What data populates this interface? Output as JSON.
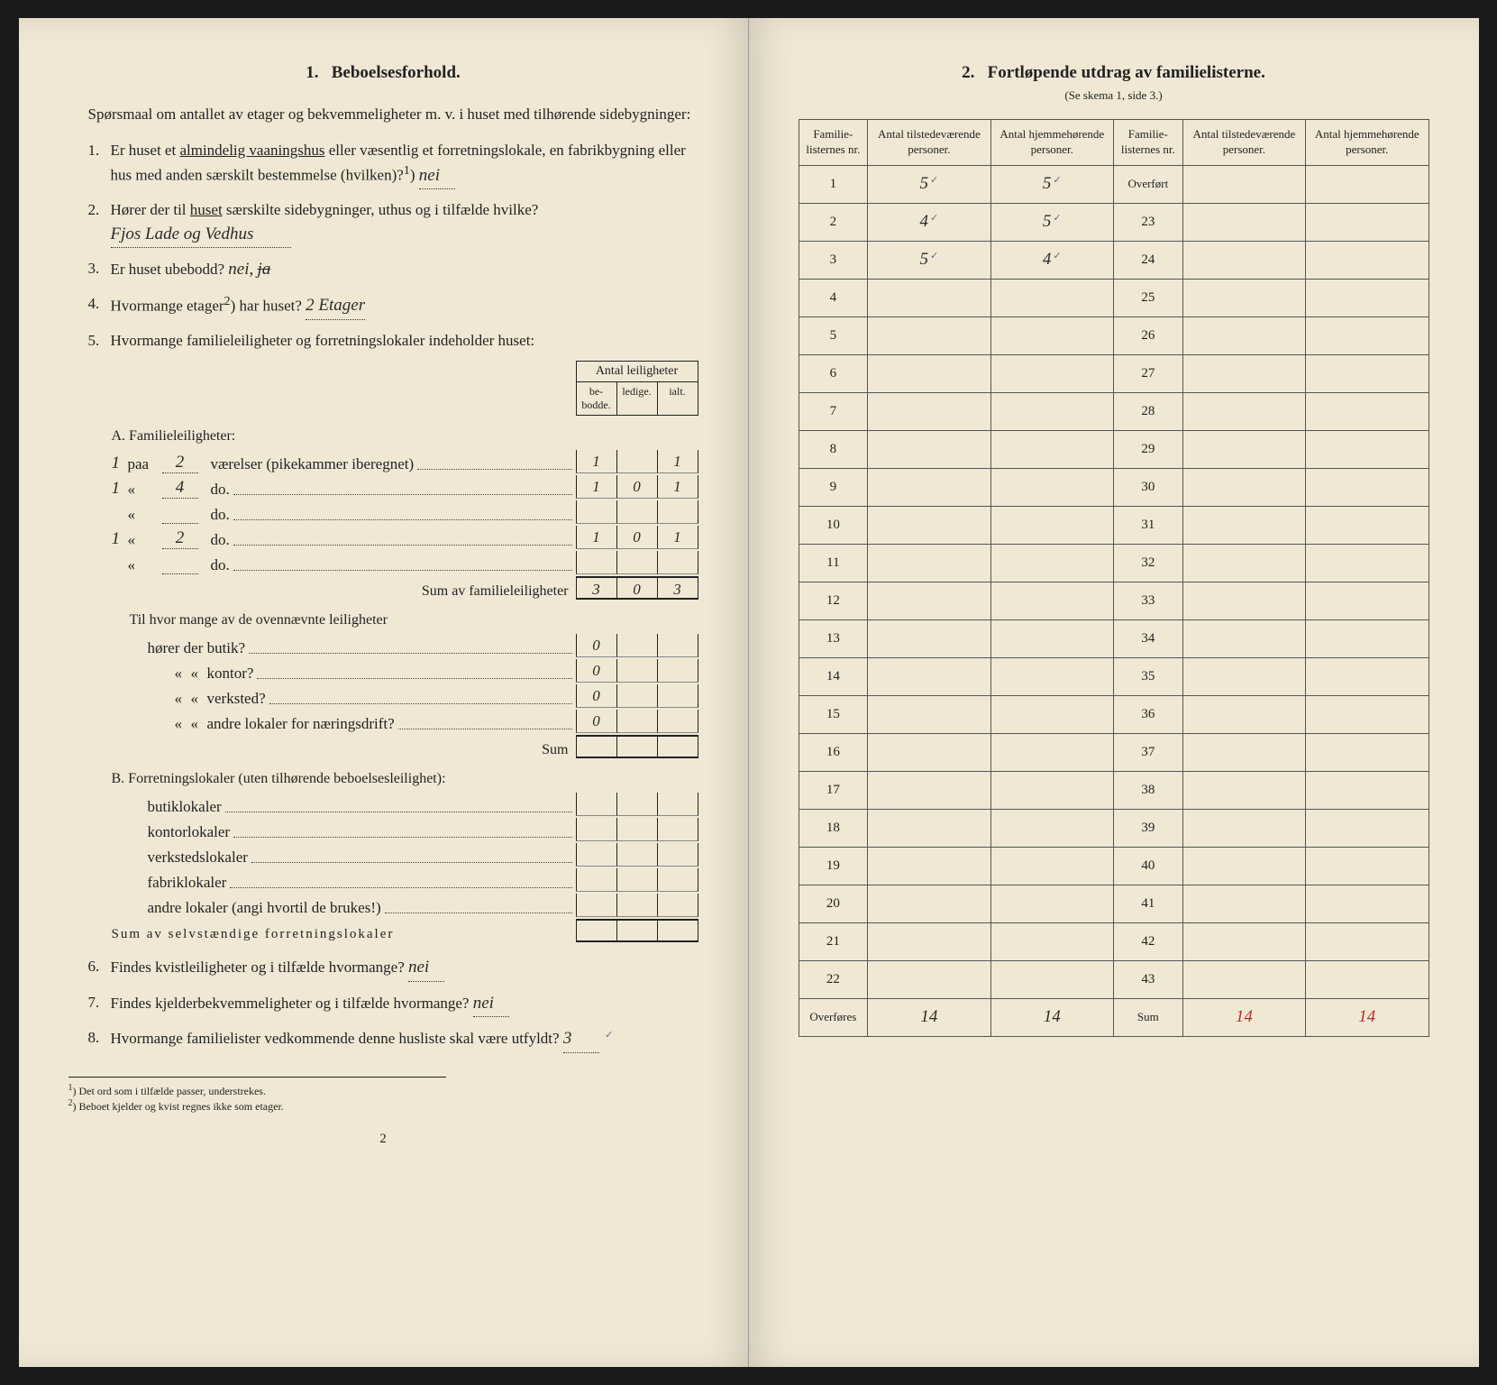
{
  "left": {
    "section_number": "1.",
    "section_title": "Beboelsesforhold.",
    "intro": "Spørsmaal om antallet av etager og bekvemmeligheter m. v. i huset med tilhørende sidebygninger:",
    "q1": {
      "num": "1.",
      "text_a": "Er huset et ",
      "underlined": "almindelig vaaningshus",
      "text_b": " eller væsentlig et forretningslokale, en fabrikbygning eller hus med anden særskilt bestemmelse (hvilken)?",
      "sup": "1",
      "closing": ")",
      "answer": "nei"
    },
    "q2": {
      "num": "2.",
      "text_a": "Hører der til ",
      "underlined": "huset",
      "text_b": " særskilte sidebygninger, uthus og i tilfælde hvilke?",
      "answer": "Fjos Lade og Vedhus"
    },
    "q3": {
      "num": "3.",
      "text": "Er huset ubebodd?",
      "answer": "nei,",
      "struck": "ja"
    },
    "q4": {
      "num": "4.",
      "text_a": "Hvormange etager",
      "sup": "2",
      "text_b": ") har huset?",
      "answer": "2 Etager"
    },
    "q5": {
      "num": "5.",
      "text": "Hvormange familieleiligheter og forretningslokaler indeholder huset:"
    },
    "antal_header": "Antal leiligheter",
    "antal_sub": {
      "c1": "be-bodde.",
      "c2": "ledige.",
      "c3": "ialt."
    },
    "sectionA": {
      "label": "A. Familieleiligheter:",
      "rows": [
        {
          "pre": "1",
          "paa": "paa",
          "n": "2",
          "mid": "værelser (pikekammer iberegnet)",
          "c1": "1",
          "c2": "",
          "c3": "1"
        },
        {
          "pre": "1",
          "quote": "«",
          "n": "4",
          "mid": "do.",
          "c1": "1",
          "c2": "0",
          "c3": "1"
        },
        {
          "pre": "",
          "quote": "«",
          "n": "",
          "mid": "do.",
          "c1": "",
          "c2": "",
          "c3": ""
        },
        {
          "pre": "1",
          "quote": "«",
          "n": "2",
          "mid": "do.",
          "c1": "1",
          "c2": "0",
          "c3": "1"
        },
        {
          "pre": "",
          "quote": "«",
          "n": "",
          "mid": "do.",
          "c1": "",
          "c2": "",
          "c3": ""
        }
      ],
      "sum_label": "Sum av familieleiligheter",
      "sum": {
        "c1": "3",
        "c2": "0",
        "c3": "3"
      },
      "til_label": "Til hvor mange av de ovennævnte leiligheter",
      "sub_rows": [
        {
          "label": "hører der butik?",
          "val": "0"
        },
        {
          "label": "kontor?",
          "val": "0"
        },
        {
          "label": "verksted?",
          "val": "0"
        },
        {
          "label": "andre lokaler for næringsdrift?",
          "val": "0"
        }
      ],
      "sub_sum_label": "Sum"
    },
    "sectionB": {
      "label": "B. Forretningslokaler (uten tilhørende beboelsesleilighet):",
      "rows": [
        "butiklokaler",
        "kontorlokaler",
        "verkstedslokaler",
        "fabriklokaler",
        "andre lokaler (angi hvortil de brukes!)"
      ],
      "sum_label": "Sum av selvstændige forretningslokaler"
    },
    "q6": {
      "num": "6.",
      "text": "Findes kvistleiligheter og i tilfælde hvormange?",
      "answer": "nei"
    },
    "q7": {
      "num": "7.",
      "text": "Findes kjelderbekvemmeligheter og i tilfælde hvormange?",
      "answer": "nei"
    },
    "q8": {
      "num": "8.",
      "text": "Hvormange familielister vedkommende denne husliste skal være utfyldt?",
      "answer": "3",
      "check": "✓"
    },
    "footnotes": {
      "f1": "Det ord som i tilfælde passer, understrekes.",
      "f2": "Beboet kjelder og kvist regnes ikke som etager."
    },
    "page_num": "2"
  },
  "right": {
    "section_number": "2.",
    "section_title": "Fortløpende utdrag av familielisterne.",
    "subtitle": "(Se skema 1, side 3.)",
    "headers": {
      "nr": "Familie-listernes nr.",
      "tilstede": "Antal tilstedeværende personer.",
      "hjemme": "Antal hjemmehørende personer."
    },
    "overfort_label": "Overført",
    "rows_left": [
      {
        "nr": "1",
        "t": "5",
        "h": "5",
        "tc": "✓",
        "hc": "✓"
      },
      {
        "nr": "2",
        "t": "4",
        "h": "5",
        "tc": "✓",
        "hc": "✓"
      },
      {
        "nr": "3",
        "t": "5",
        "h": "4",
        "tc": "✓",
        "hc": "✓"
      },
      {
        "nr": "4",
        "t": "",
        "h": ""
      },
      {
        "nr": "5",
        "t": "",
        "h": ""
      },
      {
        "nr": "6",
        "t": "",
        "h": ""
      },
      {
        "nr": "7",
        "t": "",
        "h": ""
      },
      {
        "nr": "8",
        "t": "",
        "h": ""
      },
      {
        "nr": "9",
        "t": "",
        "h": ""
      },
      {
        "nr": "10",
        "t": "",
        "h": ""
      },
      {
        "nr": "11",
        "t": "",
        "h": ""
      },
      {
        "nr": "12",
        "t": "",
        "h": ""
      },
      {
        "nr": "13",
        "t": "",
        "h": ""
      },
      {
        "nr": "14",
        "t": "",
        "h": ""
      },
      {
        "nr": "15",
        "t": "",
        "h": ""
      },
      {
        "nr": "16",
        "t": "",
        "h": ""
      },
      {
        "nr": "17",
        "t": "",
        "h": ""
      },
      {
        "nr": "18",
        "t": "",
        "h": ""
      },
      {
        "nr": "19",
        "t": "",
        "h": ""
      },
      {
        "nr": "20",
        "t": "",
        "h": ""
      },
      {
        "nr": "21",
        "t": "",
        "h": ""
      },
      {
        "nr": "22",
        "t": "",
        "h": ""
      }
    ],
    "rows_right_nrs": [
      "23",
      "24",
      "25",
      "26",
      "27",
      "28",
      "29",
      "30",
      "31",
      "32",
      "33",
      "34",
      "35",
      "36",
      "37",
      "38",
      "39",
      "40",
      "41",
      "42",
      "43"
    ],
    "overfores_label": "Overføres",
    "overfores": {
      "t": "14",
      "h": "14"
    },
    "sum_label": "Sum",
    "sum": {
      "t": "14",
      "h": "14"
    }
  }
}
